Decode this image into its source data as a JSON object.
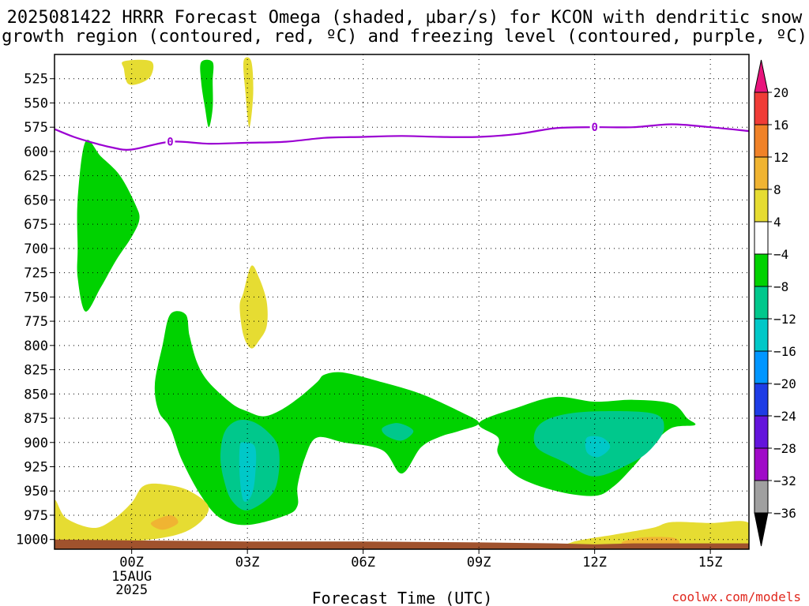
{
  "chart_data": {
    "type": "heatmap",
    "title": "2025081422 HRRR Forecast Omega (shaded, µbar/s) for KCON with dendritic snow growth region (contoured, red, ºC) and freezing level (contoured, purple, ºC)",
    "title_lines": [
      "2025081422 HRRR Forecast Omega (shaded, µbar/s) for KCON with dendritic snow",
      "growth region (contoured, red, ºC) and freezing level (contoured, purple, ºC)"
    ],
    "xlabel": "Forecast Time (UTC)",
    "ylabel": "",
    "x_range_hours": [
      -2,
      16
    ],
    "x_ticks": [
      {
        "hour": 0,
        "label": "00Z",
        "sub": [
          "15AUG",
          "2025"
        ]
      },
      {
        "hour": 3,
        "label": "03Z"
      },
      {
        "hour": 6,
        "label": "06Z"
      },
      {
        "hour": 9,
        "label": "09Z"
      },
      {
        "hour": 12,
        "label": "12Z"
      },
      {
        "hour": 15,
        "label": "15Z"
      }
    ],
    "y_scale": "linear_inverted_pressure",
    "ylim": [
      1010,
      500
    ],
    "y_ticks": [
      525,
      550,
      575,
      600,
      625,
      650,
      675,
      700,
      725,
      750,
      775,
      800,
      825,
      850,
      875,
      900,
      925,
      950,
      975,
      1000
    ],
    "grid": true,
    "colorbar": {
      "levels": [
        "20",
        "16",
        "12",
        "8",
        "4",
        "−4",
        "−8",
        "−12",
        "−16",
        "−20",
        "−24",
        "−28",
        "−32",
        "−36"
      ],
      "colors": [
        "#e8147c",
        "#f03c37",
        "#f08228",
        "#f0b432",
        "#e6dc32",
        "#ffffff",
        "#00d200",
        "#00c88c",
        "#00c8c8",
        "#0096ff",
        "#1e3ce6",
        "#6414dc",
        "#a00ac8",
        "#a0a0a0",
        "#000000"
      ]
    },
    "freezing_level": {
      "label": "0",
      "color": "#9b00d2",
      "points": [
        [
          -2,
          577
        ],
        [
          -1.5,
          585
        ],
        [
          -1,
          591
        ],
        [
          -0.5,
          596
        ],
        [
          0,
          598
        ],
        [
          1,
          590
        ],
        [
          2,
          592
        ],
        [
          3,
          591
        ],
        [
          4,
          590
        ],
        [
          5,
          586
        ],
        [
          6,
          585
        ],
        [
          7,
          584
        ],
        [
          8,
          585
        ],
        [
          9,
          585
        ],
        [
          10,
          582
        ],
        [
          11,
          576
        ],
        [
          12,
          575
        ],
        [
          13,
          575
        ],
        [
          14,
          572
        ],
        [
          15,
          575
        ],
        [
          16,
          579
        ]
      ],
      "label_hours": [
        1,
        12
      ]
    },
    "shaded_regions": [
      {
        "class": "-4 to -8",
        "color": "#00d200",
        "points": [
          [
            -1.2,
            590
          ],
          [
            -0.8,
            605
          ],
          [
            -0.3,
            625
          ],
          [
            0.1,
            655
          ],
          [
            0.2,
            670
          ],
          [
            0,
            688
          ],
          [
            -0.4,
            712
          ],
          [
            -0.8,
            740
          ],
          [
            -1.2,
            765
          ],
          [
            -1.4,
            730
          ],
          [
            -1.4,
            700
          ],
          [
            -1.4,
            650
          ]
        ]
      },
      {
        "class": "-4 to -8",
        "color": "#00d200",
        "points": [
          [
            1.8,
            508
          ],
          [
            2.1,
            508
          ],
          [
            2.1,
            528
          ],
          [
            2.1,
            555
          ],
          [
            2,
            575
          ],
          [
            1.9,
            555
          ],
          [
            1.8,
            528
          ]
        ]
      },
      {
        "class": "-4 to -8",
        "color": "#00d200",
        "points": [
          [
            1,
            768
          ],
          [
            1.4,
            768
          ],
          [
            1.5,
            790
          ],
          [
            1.7,
            818
          ],
          [
            2,
            838
          ],
          [
            2.6,
            860
          ],
          [
            3,
            868
          ],
          [
            3.4,
            873
          ],
          [
            3.8,
            868
          ],
          [
            4.3,
            855
          ],
          [
            4.8,
            838
          ],
          [
            5,
            830
          ],
          [
            5.5,
            828
          ],
          [
            6.5,
            838
          ],
          [
            7.5,
            850
          ],
          [
            8.5,
            868
          ],
          [
            9,
            880
          ],
          [
            8.5,
            888
          ],
          [
            8,
            894
          ],
          [
            7.5,
            905
          ],
          [
            7,
            932
          ],
          [
            6.5,
            908
          ],
          [
            5.5,
            900
          ],
          [
            4.8,
            895
          ],
          [
            4.5,
            915
          ],
          [
            4.3,
            945
          ],
          [
            4.3,
            965
          ],
          [
            4,
            975
          ],
          [
            3,
            985
          ],
          [
            2.3,
            978
          ],
          [
            1.8,
            955
          ],
          [
            1.3,
            918
          ],
          [
            1,
            885
          ],
          [
            0.7,
            868
          ],
          [
            0.6,
            840
          ],
          [
            0.8,
            800
          ]
        ]
      },
      {
        "class": "-4 to -8",
        "color": "#00d200",
        "points": [
          [
            9,
            880
          ],
          [
            10,
            864
          ],
          [
            11,
            853
          ],
          [
            12,
            858
          ],
          [
            13,
            856
          ],
          [
            14,
            860
          ],
          [
            14.4,
            875
          ],
          [
            14.6,
            882
          ],
          [
            14,
            885
          ],
          [
            13.5,
            902
          ],
          [
            13,
            925
          ],
          [
            12.5,
            945
          ],
          [
            12,
            955
          ],
          [
            11,
            950
          ],
          [
            10,
            935
          ],
          [
            9.5,
            912
          ],
          [
            9.5,
            895
          ]
        ]
      },
      {
        "class": "-8 to -12",
        "color": "#00c88c",
        "points": [
          [
            2.4,
            890
          ],
          [
            2.7,
            878
          ],
          [
            3.1,
            878
          ],
          [
            3.5,
            888
          ],
          [
            3.8,
            905
          ],
          [
            3.8,
            935
          ],
          [
            3.6,
            955
          ],
          [
            3,
            970
          ],
          [
            2.6,
            960
          ],
          [
            2.4,
            940
          ],
          [
            2.3,
            915
          ]
        ]
      },
      {
        "class": "-8 to -12",
        "color": "#00c88c",
        "points": [
          [
            6.5,
            885
          ],
          [
            6.9,
            880
          ],
          [
            7.3,
            888
          ],
          [
            7,
            898
          ],
          [
            6.6,
            893
          ]
        ]
      },
      {
        "class": "-8 to -12",
        "color": "#00c88c",
        "points": [
          [
            10.5,
            885
          ],
          [
            11,
            873
          ],
          [
            12,
            868
          ],
          [
            13.5,
            870
          ],
          [
            13.8,
            885
          ],
          [
            13.5,
            905
          ],
          [
            13,
            920
          ],
          [
            12,
            935
          ],
          [
            11.2,
            920
          ],
          [
            10.5,
            905
          ]
        ]
      },
      {
        "class": "-12 to -16",
        "color": "#00c8c8",
        "points": [
          [
            2.9,
            900
          ],
          [
            3.2,
            905
          ],
          [
            3.2,
            935
          ],
          [
            3.1,
            955
          ],
          [
            2.9,
            960
          ],
          [
            2.8,
            935
          ],
          [
            2.8,
            905
          ]
        ]
      },
      {
        "class": "-12 to -16",
        "color": "#00c8c8",
        "points": [
          [
            11.8,
            895
          ],
          [
            12.2,
            895
          ],
          [
            12.4,
            905
          ],
          [
            12.1,
            915
          ],
          [
            11.8,
            910
          ]
        ]
      },
      {
        "class": "4 to 8",
        "color": "#e6dc32",
        "points": [
          [
            -0.2,
            507
          ],
          [
            0.5,
            507
          ],
          [
            0.5,
            522
          ],
          [
            0.2,
            530
          ],
          [
            -0.1,
            530
          ],
          [
            -0.2,
            515
          ]
        ]
      },
      {
        "class": "4 to 8",
        "color": "#e6dc32",
        "points": [
          [
            2.9,
            507
          ],
          [
            3.1,
            507
          ],
          [
            3.15,
            540
          ],
          [
            3.05,
            575
          ],
          [
            2.95,
            540
          ]
        ]
      },
      {
        "class": "4 to 8",
        "color": "#e6dc32",
        "points": [
          [
            2.9,
            745
          ],
          [
            3.1,
            718
          ],
          [
            3.3,
            730
          ],
          [
            3.5,
            755
          ],
          [
            3.5,
            780
          ],
          [
            3.3,
            795
          ],
          [
            3.1,
            803
          ],
          [
            2.9,
            790
          ],
          [
            2.8,
            760
          ]
        ]
      },
      {
        "class": "4 to 8",
        "color": "#e6dc32",
        "points": [
          [
            -2,
            960
          ],
          [
            -1.7,
            978
          ],
          [
            -1,
            988
          ],
          [
            -0.5,
            980
          ],
          [
            0,
            962
          ],
          [
            0.3,
            945
          ],
          [
            0.8,
            943
          ],
          [
            1.5,
            950
          ],
          [
            2,
            968
          ],
          [
            1.5,
            990
          ],
          [
            0.5,
            1000
          ],
          [
            -1,
            1002
          ],
          [
            -2,
            1002
          ]
        ]
      },
      {
        "class": "4 to 8",
        "color": "#e6dc32",
        "points": [
          [
            11.4,
            1003
          ],
          [
            12.5,
            995
          ],
          [
            13.5,
            988
          ],
          [
            14,
            982
          ],
          [
            15,
            983
          ],
          [
            16,
            983
          ],
          [
            16,
            1012
          ],
          [
            11.4,
            1012
          ]
        ]
      },
      {
        "class": "8 to 12",
        "color": "#f0b432",
        "points": [
          [
            0.5,
            983
          ],
          [
            1,
            975
          ],
          [
            1.2,
            983
          ],
          [
            0.8,
            990
          ]
        ]
      },
      {
        "class": "8 to 12",
        "color": "#f0b432",
        "points": [
          [
            12.7,
            1003
          ],
          [
            13.2,
            998
          ],
          [
            14,
            998
          ],
          [
            14.2,
            1003
          ],
          [
            14,
            1006
          ],
          [
            13,
            1006
          ]
        ]
      }
    ],
    "terrain": {
      "color": "#a0522d",
      "points": [
        [
          -2,
          1000
        ],
        [
          0,
          1001
        ],
        [
          3,
          1002
        ],
        [
          6,
          1002
        ],
        [
          9,
          1003
        ],
        [
          11,
          1004
        ],
        [
          12,
          1005
        ],
        [
          13,
          1004
        ],
        [
          16,
          1004
        ]
      ]
    },
    "credit": "coolwx.com/models"
  }
}
